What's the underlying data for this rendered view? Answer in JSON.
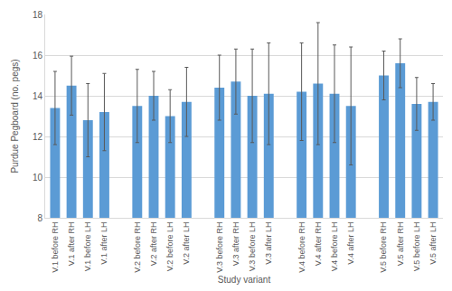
{
  "chart_data": {
    "type": "bar",
    "x_label": "Study variant",
    "y_label": "Purdue Pegboard (no. pegs)",
    "categories": [
      "V.1 before RH",
      "V.1 after RH",
      "V.1 before LH",
      "V.1 after LH",
      null,
      "V.2 before RH",
      "V.2 after RH",
      "V.2 before LH",
      "V.2 after LH",
      null,
      "V.3 before RH",
      "V.3 after RH",
      "V.3 before LH",
      "V.3 after LH",
      null,
      "V.4 before RH",
      "V.4 after RH",
      "V.4 before LH",
      "V.4 after LH",
      null,
      "V.5 before RH",
      "V.5 after RH",
      "V.5 before LH",
      "V.5 after LH"
    ],
    "values": [
      13.4,
      14.5,
      12.8,
      13.2,
      null,
      13.5,
      14.0,
      13.0,
      13.7,
      null,
      14.4,
      14.7,
      14.0,
      14.1,
      null,
      14.2,
      14.6,
      14.1,
      13.5,
      null,
      15.0,
      15.6,
      13.6,
      13.7
    ],
    "errors": [
      1.8,
      1.45,
      1.8,
      1.9,
      null,
      1.8,
      1.2,
      1.3,
      1.7,
      null,
      1.6,
      1.6,
      2.3,
      2.5,
      null,
      2.4,
      3.0,
      2.4,
      2.9,
      null,
      1.2,
      1.2,
      1.3,
      0.9
    ],
    "color": "#5b9bd5",
    "ylim": [
      8,
      18
    ],
    "yticks": [
      8,
      10,
      12,
      14,
      16,
      18
    ],
    "grid": true
  }
}
